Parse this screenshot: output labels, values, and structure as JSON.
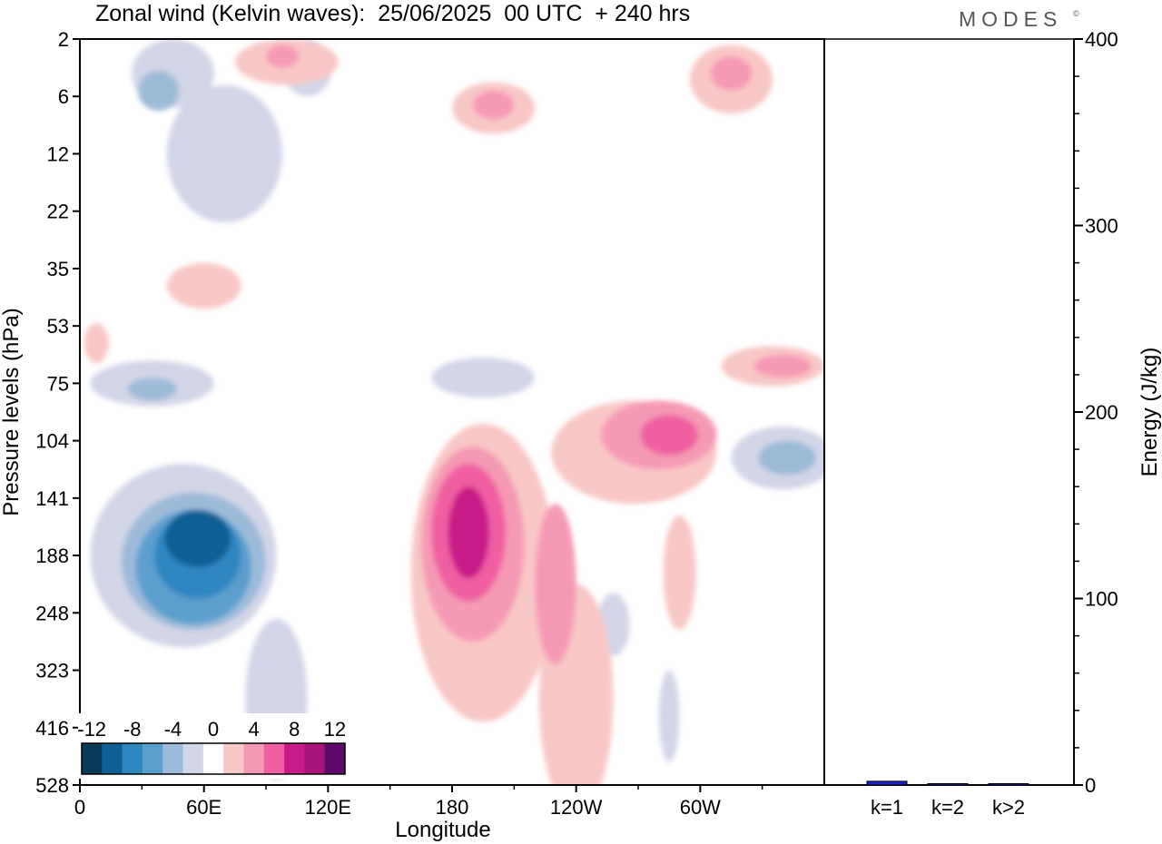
{
  "header": {
    "title": "Zonal wind (Kelvin waves):  25/06/2025  00 UTC  + 240 hrs",
    "brand": "MODES",
    "brand_mark": "©"
  },
  "chart_data": [
    {
      "type": "heatmap",
      "title": "Zonal wind (Kelvin waves):  25/06/2025  00 UTC  + 240 hrs",
      "xlabel": "Longitude",
      "ylabel": "Pressure levels (hPa)",
      "x_ticks": [
        "0",
        "60E",
        "120E",
        "180",
        "120W",
        "60W"
      ],
      "x_tick_values": [
        0,
        60,
        120,
        180,
        240,
        300
      ],
      "xlim": [
        0,
        360
      ],
      "y_ticks": [
        "2",
        "6",
        "12",
        "22",
        "35",
        "53",
        "75",
        "104",
        "141",
        "188",
        "248",
        "323",
        "416",
        "528"
      ],
      "colorbar": {
        "labels": [
          "-12",
          "-8",
          "-4",
          "0",
          "4",
          "8",
          "12"
        ],
        "levels": [
          -14,
          -12,
          -10,
          -8,
          -6,
          -4,
          -2,
          2,
          4,
          6,
          8,
          10,
          12,
          14
        ],
        "colors": [
          "#0b3b5a",
          "#0d5f94",
          "#2e86c1",
          "#5b9fcd",
          "#9dbbd9",
          "#d3d6e8",
          "#ffffff",
          "#f8c8c6",
          "#f59ab4",
          "#ef5fa2",
          "#c81d88",
          "#a61478",
          "#5e0a6a"
        ]
      },
      "regions": [
        {
          "value": -3,
          "lon": 45,
          "lev": 0.6,
          "rx": 20,
          "ry": 0.6
        },
        {
          "value": -3,
          "lon": 110,
          "lev": 0.5,
          "rx": 12,
          "ry": 0.5
        },
        {
          "value": -3,
          "lon": 70,
          "lev": 2.0,
          "rx": 28,
          "ry": 1.2
        },
        {
          "value": -5,
          "lon": 38,
          "lev": 0.9,
          "rx": 10,
          "ry": 0.35
        },
        {
          "value": -3,
          "lon": 35,
          "lev": 6.0,
          "rx": 30,
          "ry": 0.4
        },
        {
          "value": -5,
          "lon": 35,
          "lev": 6.1,
          "rx": 12,
          "ry": 0.2
        },
        {
          "value": -3,
          "lon": 195,
          "lev": 5.9,
          "rx": 25,
          "ry": 0.35
        },
        {
          "value": -3,
          "lon": 50,
          "lev": 9.0,
          "rx": 45,
          "ry": 1.6
        },
        {
          "value": -3,
          "lon": 95,
          "lev": 11.5,
          "rx": 15,
          "ry": 1.4
        },
        {
          "value": -5,
          "lon": 55,
          "lev": 9.1,
          "rx": 35,
          "ry": 1.2
        },
        {
          "value": -7,
          "lon": 55,
          "lev": 9.2,
          "rx": 28,
          "ry": 1.0
        },
        {
          "value": -9,
          "lon": 57,
          "lev": 9.0,
          "rx": 21,
          "ry": 0.75
        },
        {
          "value": -11,
          "lon": 57,
          "lev": 8.7,
          "rx": 16,
          "ry": 0.5
        },
        {
          "value": -3,
          "lon": 258,
          "lev": 10.2,
          "rx": 8,
          "ry": 0.55
        },
        {
          "value": -3,
          "lon": 340,
          "lev": 7.3,
          "rx": 25,
          "ry": 0.55
        },
        {
          "value": -5,
          "lon": 342,
          "lev": 7.3,
          "rx": 14,
          "ry": 0.3
        },
        {
          "value": -3,
          "lon": 285,
          "lev": 11.8,
          "rx": 5,
          "ry": 0.8
        },
        {
          "value": 3,
          "lon": 100,
          "lev": 0.4,
          "rx": 25,
          "ry": 0.4
        },
        {
          "value": 5,
          "lon": 98,
          "lev": 0.3,
          "rx": 8,
          "ry": 0.2
        },
        {
          "value": 3,
          "lon": 200,
          "lev": 1.2,
          "rx": 20,
          "ry": 0.45
        },
        {
          "value": 5,
          "lon": 200,
          "lev": 1.15,
          "rx": 10,
          "ry": 0.25
        },
        {
          "value": 3,
          "lon": 315,
          "lev": 0.7,
          "rx": 20,
          "ry": 0.6
        },
        {
          "value": 5,
          "lon": 315,
          "lev": 0.6,
          "rx": 10,
          "ry": 0.3
        },
        {
          "value": 3,
          "lon": 60,
          "lev": 4.3,
          "rx": 18,
          "ry": 0.4
        },
        {
          "value": 3,
          "lon": 8,
          "lev": 5.3,
          "rx": 6,
          "ry": 0.35
        },
        {
          "value": 3,
          "lon": 195,
          "lev": 9.3,
          "rx": 35,
          "ry": 2.6
        },
        {
          "value": 5,
          "lon": 190,
          "lev": 8.8,
          "rx": 25,
          "ry": 1.7
        },
        {
          "value": 7,
          "lon": 188,
          "lev": 8.6,
          "rx": 18,
          "ry": 1.2
        },
        {
          "value": 9,
          "lon": 188,
          "lev": 8.6,
          "rx": 10,
          "ry": 0.8
        },
        {
          "value": 3,
          "lon": 240,
          "lev": 11.5,
          "rx": 18,
          "ry": 2.0
        },
        {
          "value": 5,
          "lon": 230,
          "lev": 9.5,
          "rx": 10,
          "ry": 1.4
        },
        {
          "value": 3,
          "lon": 268,
          "lev": 7.2,
          "rx": 40,
          "ry": 0.9
        },
        {
          "value": 5,
          "lon": 280,
          "lev": 6.9,
          "rx": 28,
          "ry": 0.6
        },
        {
          "value": 7,
          "lon": 285,
          "lev": 6.9,
          "rx": 14,
          "ry": 0.35
        },
        {
          "value": 3,
          "lon": 335,
          "lev": 5.7,
          "rx": 25,
          "ry": 0.35
        },
        {
          "value": 5,
          "lon": 340,
          "lev": 5.7,
          "rx": 14,
          "ry": 0.2
        },
        {
          "value": 3,
          "lon": 290,
          "lev": 9.3,
          "rx": 8,
          "ry": 1.0
        }
      ]
    },
    {
      "type": "bar",
      "categories": [
        "k=1",
        "k=2",
        "k>2"
      ],
      "values": [
        2,
        0.5,
        0.5
      ],
      "ylabel": "Energy (J/kg)",
      "ylim": [
        0,
        400
      ],
      "y_ticks": [
        "0",
        "100",
        "200",
        "300",
        "400"
      ],
      "colors": [
        "#1a22c8",
        "#1a22c8",
        "#1a22c8"
      ]
    }
  ]
}
